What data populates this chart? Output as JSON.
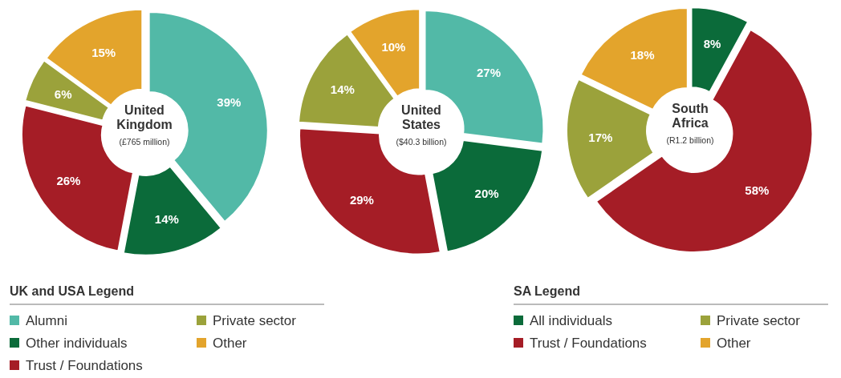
{
  "chart_data": [
    {
      "type": "donut",
      "title": "United Kingdom",
      "subtitle": "(£765 million)",
      "legend_title": "UK and USA Legend",
      "legend": "bottom left",
      "categories": [
        "Alumni",
        "Other individuals",
        "Trust / Foundations",
        "Private sector",
        "Other"
      ],
      "values": [
        39,
        14,
        26,
        6,
        15
      ],
      "value_labels": [
        "39%",
        "14%",
        "26%",
        "6%",
        "15%"
      ],
      "colors": [
        "#52b9a7",
        "#0b6b3a",
        "#a51d26",
        "#9ba23b",
        "#e3a42c"
      ]
    },
    {
      "type": "donut",
      "title": "United States",
      "subtitle": "($40.3 billion)",
      "categories": [
        null,
        null,
        null,
        null,
        null
      ],
      "values": [
        27,
        20,
        29,
        14,
        10
      ],
      "value_labels": [
        "27%",
        "20%",
        "29%",
        "14%",
        "10%"
      ],
      "colors": [
        "#52b9a7",
        "#0b6b3a",
        "#a51d26",
        "#9ba23b",
        "#e3a42c"
      ]
    },
    {
      "type": "donut",
      "title": "South Africa",
      "subtitle": "(R1.2 billion)",
      "legend_title": "SA Legend",
      "legend": "bottom left",
      "categories": [
        "All individuals",
        "Trust / Foundations",
        "Private sector",
        "Other"
      ],
      "values": [
        8,
        58,
        17,
        18
      ],
      "value_labels": [
        "8%",
        "58%",
        "17%",
        "18%"
      ],
      "colors": [
        "#0b6b3a",
        "#a51d26",
        "#9ba23b",
        "#e3a42c"
      ]
    }
  ]
}
